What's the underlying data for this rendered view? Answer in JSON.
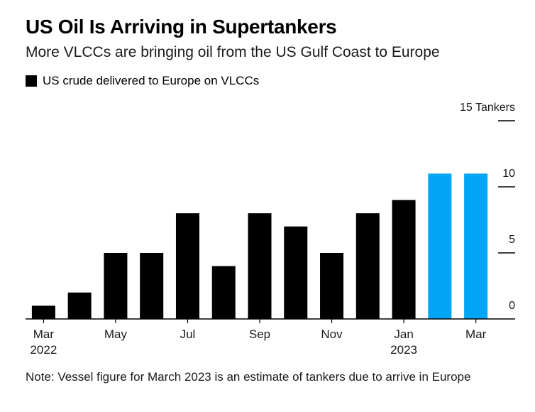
{
  "chart_data": {
    "type": "bar",
    "title": "US Oil Is Arriving in Supertankers",
    "subtitle": "More VLCCs are bringing oil from the US Gulf Coast to Europe",
    "legend": [
      {
        "label": "US crude delivered to Europe on VLCCs",
        "color": "#000000"
      }
    ],
    "categories": [
      "Mar 2022",
      "Apr 2022",
      "May 2022",
      "Jun 2022",
      "Jul 2022",
      "Aug 2022",
      "Sep 2022",
      "Oct 2022",
      "Nov 2022",
      "Dec 2022",
      "Jan 2023",
      "Feb 2023",
      "Mar 2023"
    ],
    "values": [
      1,
      2,
      5,
      5,
      8,
      4,
      8,
      7,
      5,
      8,
      9,
      11,
      11
    ],
    "bar_colors": [
      "#000000",
      "#000000",
      "#000000",
      "#000000",
      "#000000",
      "#000000",
      "#000000",
      "#000000",
      "#000000",
      "#000000",
      "#000000",
      "#00a6f5",
      "#00a6f5"
    ],
    "x_tick_labels": [
      {
        "index": 0,
        "line1": "Mar",
        "line2": "2022"
      },
      {
        "index": 2,
        "line1": "May",
        "line2": ""
      },
      {
        "index": 4,
        "line1": "Jul",
        "line2": ""
      },
      {
        "index": 6,
        "line1": "Sep",
        "line2": ""
      },
      {
        "index": 8,
        "line1": "Nov",
        "line2": ""
      },
      {
        "index": 10,
        "line1": "Jan",
        "line2": "2023"
      },
      {
        "index": 12,
        "line1": "Mar",
        "line2": ""
      }
    ],
    "y_ticks": [
      {
        "value": 0,
        "label": "0"
      },
      {
        "value": 5,
        "label": "5"
      },
      {
        "value": 10,
        "label": "10"
      },
      {
        "value": 15,
        "label": "15 Tankers"
      }
    ],
    "ylim": [
      0,
      15
    ],
    "xlabel": "",
    "ylabel": "Tankers"
  },
  "note": "Note: Vessel figure for March 2023 is an estimate of tankers due to arrive in Europe"
}
